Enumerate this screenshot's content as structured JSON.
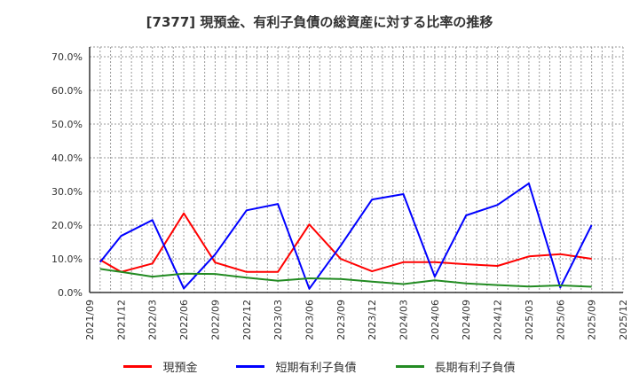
{
  "chart_data": {
    "type": "line",
    "title": "[7377]  現預金、有利子負債の総資産に対する比率の推移",
    "xlabel": "",
    "ylabel": "",
    "ylim": [
      0,
      70
    ],
    "yticks": [
      "0.0%",
      "10.0%",
      "20.0%",
      "30.0%",
      "40.0%",
      "50.0%",
      "60.0%",
      "70.0%"
    ],
    "xticks": [
      "2021/09",
      "2021/12",
      "2022/03",
      "2022/06",
      "2022/09",
      "2022/12",
      "2023/03",
      "2023/06",
      "2023/09",
      "2023/12",
      "2024/03",
      "2024/06",
      "2024/09",
      "2024/12",
      "2025/03",
      "2025/06",
      "2025/09",
      "2025/12"
    ],
    "grid": true,
    "legend_position": "bottom",
    "x": [
      "2021/10",
      "2021/12",
      "2022/03",
      "2022/06",
      "2022/09",
      "2022/12",
      "2023/03",
      "2023/06",
      "2023/09",
      "2023/12",
      "2024/03",
      "2024/06",
      "2024/09",
      "2024/12",
      "2025/03",
      "2025/06",
      "2025/09"
    ],
    "series": [
      {
        "name": "現預金",
        "color": "#ff0000",
        "values": [
          9.7,
          6.1,
          8.6,
          23.5,
          8.9,
          6.1,
          6.1,
          20.2,
          10.0,
          6.3,
          9.0,
          9.0,
          8.4,
          7.9,
          10.7,
          11.4,
          10.0
        ]
      },
      {
        "name": "短期有利子負債",
        "color": "#0000ff",
        "values": [
          9.0,
          16.8,
          21.5,
          1.2,
          11.3,
          24.4,
          26.3,
          1.1,
          13.9,
          27.6,
          29.2,
          4.7,
          22.9,
          26.0,
          32.4,
          1.5,
          20.0
        ]
      },
      {
        "name": "長期有利子負債",
        "color": "#228b22",
        "values": [
          7.0,
          6.1,
          4.7,
          5.6,
          5.5,
          4.4,
          3.5,
          4.2,
          4.0,
          3.2,
          2.5,
          3.6,
          2.7,
          2.2,
          1.8,
          2.1,
          1.7
        ]
      }
    ]
  },
  "legend": {
    "items": [
      {
        "label": "現預金",
        "color": "#ff0000"
      },
      {
        "label": "短期有利子負債",
        "color": "#0000ff"
      },
      {
        "label": "長期有利子負債",
        "color": "#228b22"
      }
    ]
  }
}
